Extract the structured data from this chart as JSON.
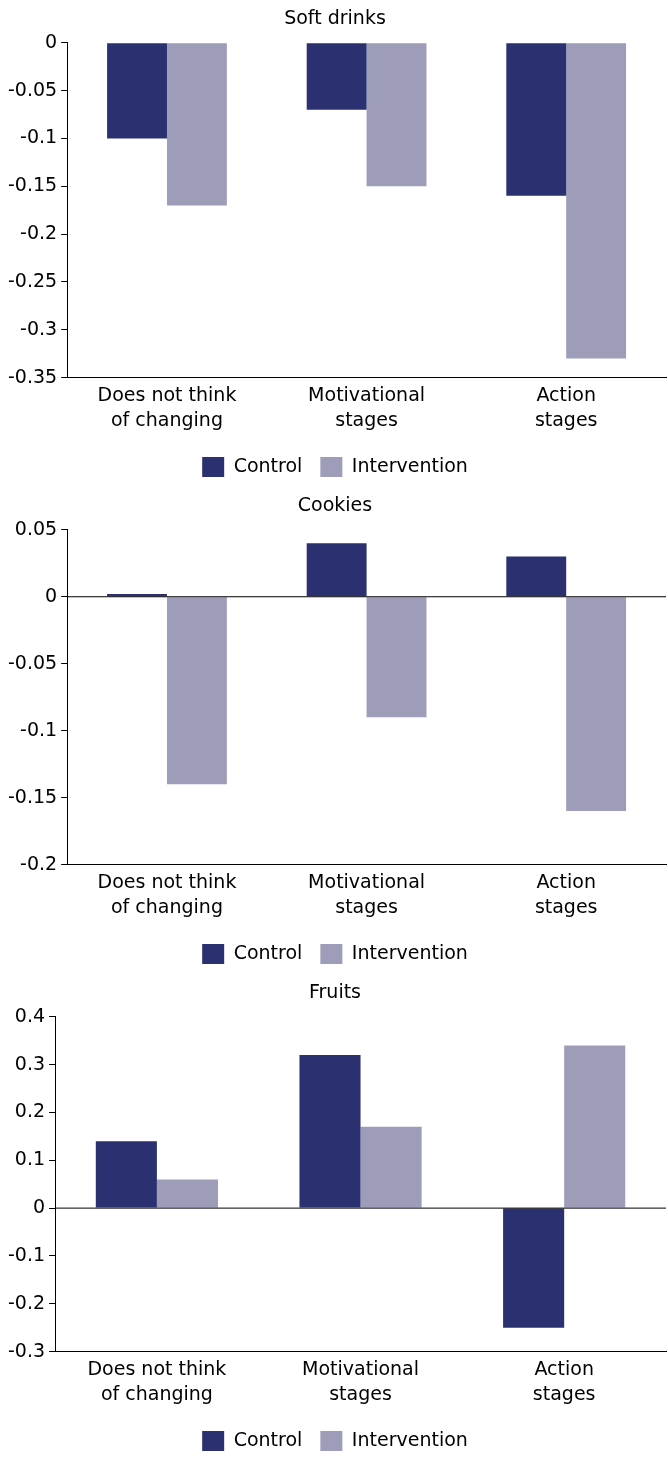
{
  "chart_data": [
    {
      "type": "bar",
      "title": "Soft drinks",
      "categories": [
        "Does not think\nof changing",
        "Motivational\nstages",
        "Action\nstages"
      ],
      "series": [
        {
          "name": "Control",
          "color": "#2b3070",
          "values": [
            -0.1,
            -0.07,
            -0.16
          ]
        },
        {
          "name": "Intervention",
          "color": "#9d9cb9",
          "values": [
            -0.17,
            -0.15,
            -0.33
          ]
        }
      ],
      "ylim": [
        -0.35,
        0
      ],
      "yticks": [
        -0.35,
        -0.3,
        -0.25,
        -0.2,
        -0.15,
        -0.1,
        -0.05,
        0
      ],
      "grid": false,
      "legend": "bottom"
    },
    {
      "type": "bar",
      "title": "Cookies",
      "categories": [
        "Does not think\nof changing",
        "Motivational\nstages",
        "Action\nstages"
      ],
      "series": [
        {
          "name": "Control",
          "color": "#2b3070",
          "values": [
            0.002,
            0.04,
            0.03
          ]
        },
        {
          "name": "Intervention",
          "color": "#9d9cb9",
          "values": [
            -0.14,
            -0.09,
            -0.16
          ]
        }
      ],
      "ylim": [
        -0.2,
        0.05
      ],
      "yticks": [
        -0.2,
        -0.15,
        -0.1,
        -0.05,
        0,
        0.05
      ],
      "grid": false,
      "legend": "bottom",
      "ref_lines": [
        {
          "axis": "y",
          "value": 0,
          "color": "#000000"
        }
      ]
    },
    {
      "type": "bar",
      "title": "Fruits",
      "categories": [
        "Does not think\nof changing",
        "Motivational\nstages",
        "Action\nstages"
      ],
      "series": [
        {
          "name": "Control",
          "color": "#2b3070",
          "values": [
            0.14,
            0.32,
            -0.25
          ]
        },
        {
          "name": "Intervention",
          "color": "#9d9cb9",
          "values": [
            0.06,
            0.17,
            0.34
          ]
        }
      ],
      "ylim": [
        -0.3,
        0.4
      ],
      "yticks": [
        -0.3,
        -0.2,
        -0.1,
        0,
        0.1,
        0.2,
        0.3,
        0.4
      ],
      "grid": false,
      "legend": "bottom",
      "ref_lines": [
        {
          "axis": "y",
          "value": 0,
          "color": "#000000"
        }
      ]
    }
  ]
}
